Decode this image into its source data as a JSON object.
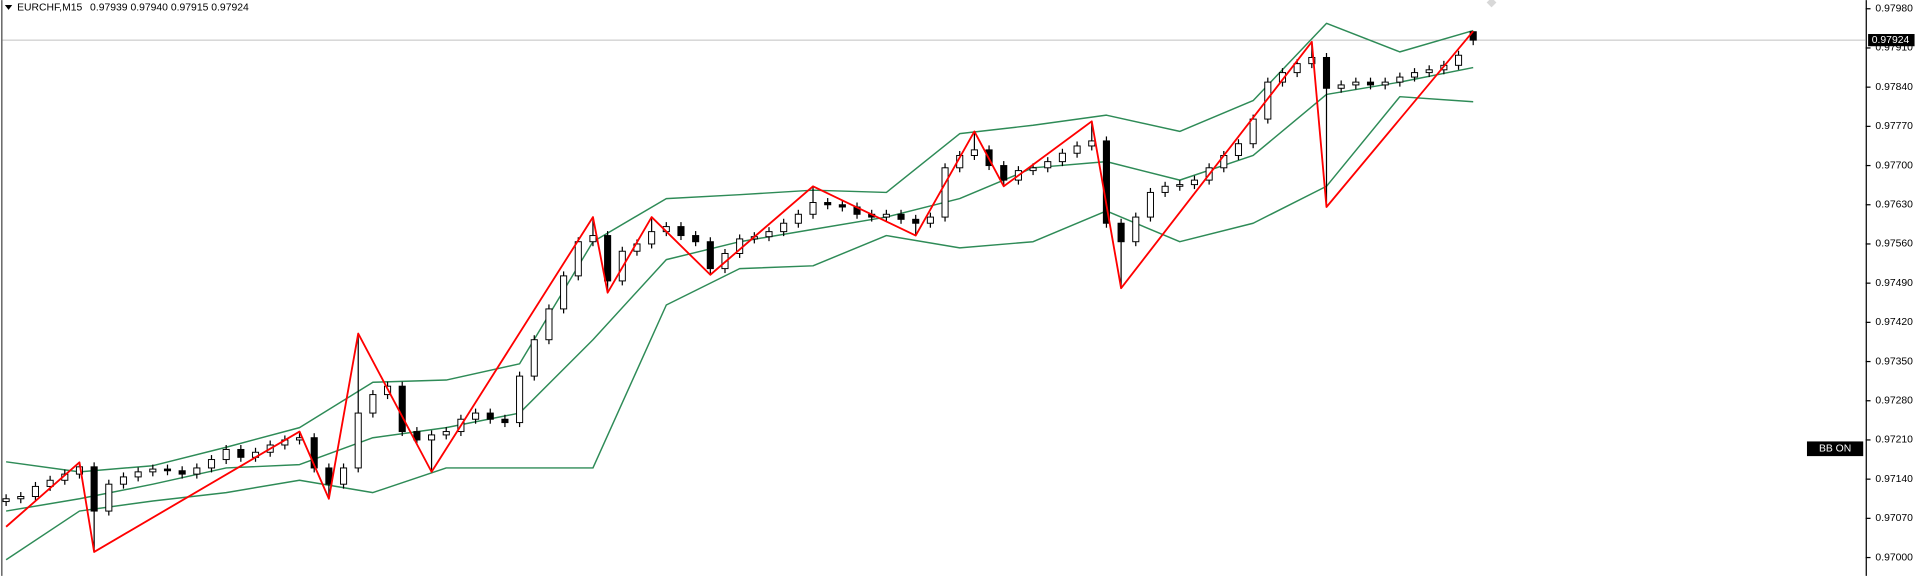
{
  "chart_data": {
    "type": "candlestick",
    "header": {
      "symbol": "EURCHF,M15",
      "values": [
        "0.97939",
        "0.97940",
        "0.97915",
        "0.97924"
      ]
    },
    "open": [
      0.971,
      0.97105,
      0.97109,
      0.97127,
      0.97138,
      0.97149,
      0.97162,
      0.97083,
      0.97131,
      0.97144,
      0.97153,
      0.97158,
      0.97155,
      0.97149,
      0.9716,
      0.97175,
      0.97193,
      0.97179,
      0.97188,
      0.97201,
      0.9721,
      0.97214,
      0.9716,
      0.97131,
      0.9716,
      0.97258,
      0.97291,
      0.97306,
      0.97225,
      0.9721,
      0.97219,
      0.97225,
      0.97247,
      0.97258,
      0.97247,
      0.97241,
      0.97324,
      0.97389,
      0.97444,
      0.97503,
      0.97564,
      0.97575,
      0.97494,
      0.97547,
      0.9756,
      0.97582,
      0.97591,
      0.97575,
      0.97564,
      0.97516,
      0.97543,
      0.97569,
      0.97573,
      0.97582,
      0.97597,
      0.97613,
      0.97634,
      0.9763,
      0.97626,
      0.97613,
      0.97608,
      0.97613,
      0.97604,
      0.97597,
      0.97608,
      0.97696,
      0.97718,
      0.97728,
      0.977,
      0.97674,
      0.97691,
      0.97696,
      0.97707,
      0.97722,
      0.97735,
      0.97744,
      0.97597,
      0.97564,
      0.97608,
      0.97652,
      0.97663,
      0.97666,
      0.97674,
      0.97696,
      0.97718,
      0.97739,
      0.97783,
      0.97849,
      0.97866,
      0.97882,
      0.97893,
      0.97838,
      0.97844,
      0.97849,
      0.97844,
      0.97849,
      0.97858,
      0.97866,
      0.97871,
      0.97879,
      0.97939
    ],
    "high": [
      0.97113,
      0.97117,
      0.97135,
      0.97146,
      0.97157,
      0.9717,
      0.9717,
      0.97139,
      0.97152,
      0.97161,
      0.97166,
      0.97166,
      0.97163,
      0.97168,
      0.97183,
      0.97201,
      0.97201,
      0.97196,
      0.97209,
      0.97218,
      0.97225,
      0.97222,
      0.97168,
      0.97168,
      0.974,
      0.97299,
      0.97314,
      0.97314,
      0.97233,
      0.97227,
      0.97233,
      0.97255,
      0.97266,
      0.97266,
      0.97255,
      0.97332,
      0.97397,
      0.97452,
      0.97511,
      0.97572,
      0.97608,
      0.97583,
      0.97555,
      0.97568,
      0.97608,
      0.97599,
      0.97599,
      0.97583,
      0.97572,
      0.97551,
      0.97577,
      0.97581,
      0.9759,
      0.97605,
      0.97621,
      0.97663,
      0.97642,
      0.97638,
      0.97634,
      0.97621,
      0.97621,
      0.97621,
      0.97612,
      0.97616,
      0.97704,
      0.97726,
      0.97761,
      0.97736,
      0.97708,
      0.97699,
      0.97704,
      0.97715,
      0.9773,
      0.97743,
      0.97779,
      0.97752,
      0.97605,
      0.97616,
      0.9766,
      0.97671,
      0.97674,
      0.97682,
      0.97704,
      0.97726,
      0.97747,
      0.97791,
      0.97857,
      0.97874,
      0.9789,
      0.97921,
      0.97901,
      0.97852,
      0.97857,
      0.97857,
      0.97857,
      0.97866,
      0.97874,
      0.97879,
      0.97887,
      0.97905,
      0.9794
    ],
    "low": [
      0.97092,
      0.97097,
      0.97101,
      0.97119,
      0.9713,
      0.97141,
      0.9701,
      0.97075,
      0.97123,
      0.97136,
      0.97145,
      0.97147,
      0.97141,
      0.97141,
      0.97152,
      0.97167,
      0.97171,
      0.97171,
      0.9718,
      0.97193,
      0.97202,
      0.97152,
      0.97105,
      0.97123,
      0.97152,
      0.9725,
      0.97283,
      0.97217,
      0.97202,
      0.97153,
      0.97211,
      0.97217,
      0.97239,
      0.97239,
      0.97233,
      0.97233,
      0.97316,
      0.97381,
      0.97436,
      0.97495,
      0.97556,
      0.97473,
      0.97486,
      0.97539,
      0.97552,
      0.97574,
      0.97567,
      0.97556,
      0.97505,
      0.97508,
      0.97535,
      0.97561,
      0.97565,
      0.97574,
      0.97589,
      0.97605,
      0.97622,
      0.97618,
      0.97605,
      0.976,
      0.976,
      0.97596,
      0.97575,
      0.97589,
      0.976,
      0.97688,
      0.9771,
      0.97692,
      0.97663,
      0.97666,
      0.97683,
      0.97688,
      0.97699,
      0.97714,
      0.97727,
      0.97589,
      0.97481,
      0.97556,
      0.976,
      0.97644,
      0.97655,
      0.97658,
      0.97666,
      0.97688,
      0.9771,
      0.97731,
      0.97775,
      0.97841,
      0.97858,
      0.97874,
      0.97626,
      0.9783,
      0.97836,
      0.97836,
      0.97836,
      0.97841,
      0.9785,
      0.97858,
      0.97863,
      0.97871,
      0.97915
    ],
    "close": [
      0.97105,
      0.97109,
      0.97127,
      0.97138,
      0.97149,
      0.97162,
      0.97083,
      0.97131,
      0.97144,
      0.97153,
      0.97158,
      0.97155,
      0.97149,
      0.9716,
      0.97175,
      0.97193,
      0.97179,
      0.97188,
      0.97201,
      0.9721,
      0.97214,
      0.9716,
      0.97131,
      0.9716,
      0.97258,
      0.97291,
      0.97306,
      0.97225,
      0.9721,
      0.97219,
      0.97225,
      0.97247,
      0.97258,
      0.97247,
      0.97241,
      0.97324,
      0.97389,
      0.97444,
      0.97503,
      0.97564,
      0.97575,
      0.97494,
      0.97547,
      0.9756,
      0.97582,
      0.97591,
      0.97575,
      0.97564,
      0.97516,
      0.97543,
      0.97569,
      0.97573,
      0.97582,
      0.97597,
      0.97613,
      0.97634,
      0.9763,
      0.97626,
      0.97613,
      0.97608,
      0.97613,
      0.97604,
      0.97597,
      0.97608,
      0.97696,
      0.97718,
      0.97728,
      0.977,
      0.97674,
      0.97691,
      0.97696,
      0.97707,
      0.97722,
      0.97735,
      0.97744,
      0.97597,
      0.97564,
      0.97608,
      0.97652,
      0.97663,
      0.97666,
      0.97674,
      0.97696,
      0.97718,
      0.97739,
      0.97783,
      0.97849,
      0.97866,
      0.97882,
      0.97893,
      0.97838,
      0.97844,
      0.97849,
      0.97844,
      0.97849,
      0.97858,
      0.97866,
      0.97871,
      0.97879,
      0.97897,
      0.97924
    ],
    "up_color": "#ffffff",
    "down_color": "#000000",
    "wick_color": "#000000",
    "bands": {
      "x": [
        0,
        5,
        10,
        15,
        20,
        25,
        30,
        35,
        40,
        45,
        50,
        55,
        60,
        65,
        70,
        75,
        80,
        85,
        90,
        95,
        100
      ],
      "color": "#2e8b57",
      "series": [
        {
          "values": [
            0.97171,
            0.97153,
            0.97164,
            0.97197,
            0.97232,
            0.97313,
            0.97317,
            0.97346,
            0.97564,
            0.97641,
            0.97648,
            0.97656,
            0.97652,
            0.97757,
            0.97772,
            0.9779,
            0.97761,
            0.97816,
            0.97954,
            0.97903,
            0.97941
          ]
        },
        {
          "values": [
            0.97083,
            0.97105,
            0.97131,
            0.9716,
            0.97166,
            0.97214,
            0.97232,
            0.97258,
            0.97389,
            0.97532,
            0.97564,
            0.97586,
            0.97608,
            0.97641,
            0.97696,
            0.97707,
            0.97674,
            0.97718,
            0.97827,
            0.97849,
            0.97875
          ]
        },
        {
          "values": [
            0.96996,
            0.97083,
            0.97101,
            0.97116,
            0.97138,
            0.97116,
            0.9716,
            0.9716,
            0.9716,
            0.97451,
            0.97516,
            0.97521,
            0.97575,
            0.97553,
            0.97564,
            0.97619,
            0.97564,
            0.97597,
            0.97663,
            0.97823,
            0.97814
          ]
        }
      ]
    },
    "zigzag": {
      "color": "#ff0000",
      "x": [
        0,
        5,
        6,
        20,
        22,
        24,
        29,
        40,
        41,
        44,
        48,
        55,
        62,
        66,
        68,
        74,
        76,
        89,
        90,
        100
      ],
      "values": [
        0.97055,
        0.9717,
        0.9701,
        0.97225,
        0.97105,
        0.974,
        0.97153,
        0.97608,
        0.97473,
        0.97608,
        0.97505,
        0.97663,
        0.97575,
        0.97761,
        0.97663,
        0.97779,
        0.97481,
        0.97921,
        0.97626,
        0.9794
      ]
    },
    "last_price": {
      "value": 0.97924,
      "label": "0.97924"
    },
    "badge": "BB ON",
    "ylim": [
      0.969672,
      0.979955
    ],
    "yticks": [
      {
        "value": 0.9798,
        "label": "0.97980"
      },
      {
        "value": 0.9791,
        "label": "0.97910"
      },
      {
        "value": 0.9784,
        "label": "0.97840"
      },
      {
        "value": 0.9777,
        "label": "0.97770"
      },
      {
        "value": 0.977,
        "label": "0.97700"
      },
      {
        "value": 0.9763,
        "label": "0.97630"
      },
      {
        "value": 0.9756,
        "label": "0.97560"
      },
      {
        "value": 0.9749,
        "label": "0.97490"
      },
      {
        "value": 0.9742,
        "label": "0.97420"
      },
      {
        "value": 0.9735,
        "label": "0.97350"
      },
      {
        "value": 0.9728,
        "label": "0.97280"
      },
      {
        "value": 0.9721,
        "label": "0.97210"
      },
      {
        "value": 0.9714,
        "label": "0.97140"
      },
      {
        "value": 0.9707,
        "label": "0.97070"
      },
      {
        "value": 0.97,
        "label": "0.97000"
      }
    ],
    "grid": false
  }
}
